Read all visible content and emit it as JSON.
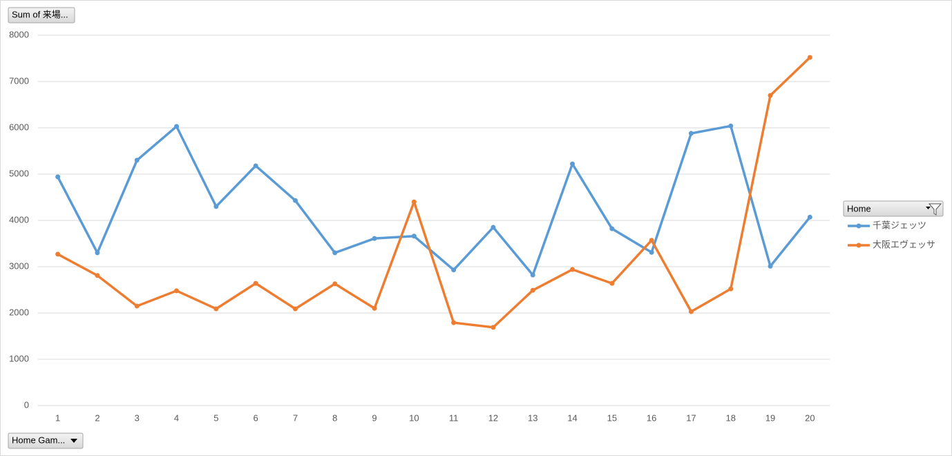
{
  "chart_data": {
    "type": "line",
    "field_buttons": {
      "values": "Sum of 来場...",
      "axis": "Home Gam...",
      "legend": "Home"
    },
    "categories": [
      "1",
      "2",
      "3",
      "4",
      "5",
      "6",
      "7",
      "8",
      "9",
      "10",
      "11",
      "12",
      "13",
      "14",
      "15",
      "16",
      "17",
      "18",
      "19",
      "20"
    ],
    "series": [
      {
        "name": "千葉ジェッツ",
        "color": "#5b9bd5",
        "values": [
          4940,
          3300,
          5300,
          6030,
          4300,
          5180,
          4430,
          3300,
          3610,
          3660,
          2930,
          3850,
          2820,
          5220,
          3820,
          3310,
          5880,
          6040,
          3010,
          4070
        ]
      },
      {
        "name": "大阪エヴェッサ",
        "color": "#ed7d31",
        "values": [
          3270,
          2810,
          2150,
          2480,
          2090,
          2640,
          2090,
          2630,
          2100,
          4400,
          1790,
          1690,
          2490,
          2940,
          2640,
          3570,
          2030,
          2520,
          6700,
          7520
        ]
      }
    ],
    "ylim": [
      0,
      8000
    ],
    "yticks": [
      0,
      1000,
      2000,
      3000,
      4000,
      5000,
      6000,
      7000,
      8000
    ],
    "grid": true
  }
}
